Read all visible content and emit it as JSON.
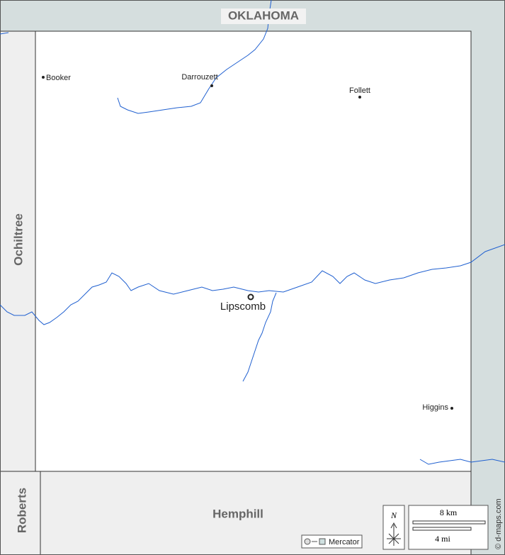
{
  "map": {
    "neighbors": {
      "north": "OKLAHOMA",
      "west": "Ochiltree",
      "southwest": "Roberts",
      "south": "Hemphill"
    },
    "places": [
      "Booker",
      "Darrouzett",
      "Follett",
      "Lipscomb",
      "Higgins"
    ],
    "scale": {
      "metric": "8 km",
      "imperial": "4 mi"
    },
    "north_label": "N",
    "projection": "Mercator",
    "credit": "© d-maps.com"
  }
}
